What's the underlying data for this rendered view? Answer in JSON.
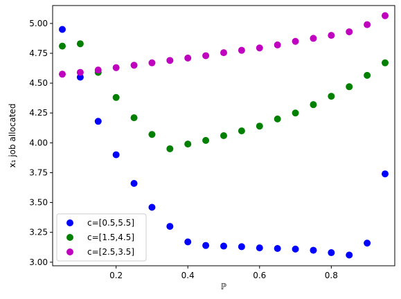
{
  "chart_data": {
    "type": "scatter",
    "title": "",
    "xlabel": "ℙ",
    "ylabel": "x₁ job allocated",
    "xlim": [
      0.023,
      0.977
    ],
    "ylim": [
      2.97,
      5.15
    ],
    "xticks": [
      0.2,
      0.4,
      0.6,
      0.8
    ],
    "xtick_labels": [
      "0.2",
      "0.4",
      "0.6",
      "0.8"
    ],
    "yticks": [
      3.0,
      3.25,
      3.5,
      3.75,
      4.0,
      4.25,
      4.5,
      4.75,
      5.0
    ],
    "ytick_labels": [
      "3.00",
      "3.25",
      "3.50",
      "3.75",
      "4.00",
      "4.25",
      "4.50",
      "4.75",
      "5.00"
    ],
    "grid": false,
    "legend_position": "lower-left",
    "x": [
      0.05,
      0.1,
      0.15,
      0.2,
      0.25,
      0.3,
      0.35,
      0.4,
      0.45,
      0.5,
      0.55,
      0.6,
      0.65,
      0.7,
      0.75,
      0.8,
      0.85,
      0.9,
      0.95
    ],
    "series": [
      {
        "name": "c=[0.5,5.5]",
        "color": "#0000ff",
        "values": [
          4.95,
          4.55,
          4.18,
          3.9,
          3.66,
          3.46,
          3.3,
          3.17,
          3.14,
          3.135,
          3.13,
          3.12,
          3.115,
          3.11,
          3.1,
          3.08,
          3.06,
          3.16,
          3.74
        ]
      },
      {
        "name": "c=[1.5,4.5]",
        "color": "#008000",
        "values": [
          4.81,
          4.83,
          4.59,
          4.38,
          4.21,
          4.07,
          3.95,
          3.99,
          4.02,
          4.06,
          4.1,
          4.14,
          4.2,
          4.25,
          4.32,
          4.39,
          4.47,
          4.565,
          4.67
        ]
      },
      {
        "name": "c=[2.5,3.5]",
        "color": "#bf00bf",
        "values": [
          4.575,
          4.59,
          4.61,
          4.63,
          4.65,
          4.67,
          4.69,
          4.71,
          4.73,
          4.755,
          4.775,
          4.795,
          4.82,
          4.85,
          4.875,
          4.9,
          4.93,
          4.99,
          5.065
        ]
      }
    ]
  }
}
